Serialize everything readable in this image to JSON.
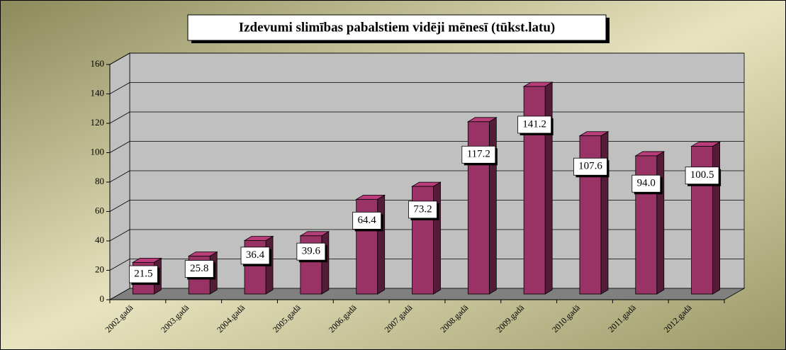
{
  "chart_data": {
    "type": "bar3d",
    "title": "Izdevumi slimības pabalstiem vidēji mēnesī (tūkst.latu)",
    "categories": [
      "2002.gadā",
      "2003.gadā",
      "2004.gadā",
      "2005.gadā",
      "2006.gadā",
      "2007.gadā",
      "2008.gadā",
      "2009.gadā",
      "2010.gadā",
      "2011.gadā",
      "2012.gadā"
    ],
    "values": [
      21.5,
      25.8,
      36.4,
      39.6,
      64.4,
      73.2,
      117.2,
      141.2,
      107.6,
      94.0,
      100.5
    ],
    "value_labels": [
      "21.5",
      "25.8",
      "36.4",
      "39.6",
      "64.4",
      "73.2",
      "117.2",
      "141.2",
      "107.6",
      "94.0",
      "100.5"
    ],
    "color": "#993366",
    "ylim": [
      0,
      160
    ],
    "yticks": [
      0,
      20,
      40,
      60,
      80,
      100,
      120,
      140,
      160
    ],
    "grid": true
  }
}
